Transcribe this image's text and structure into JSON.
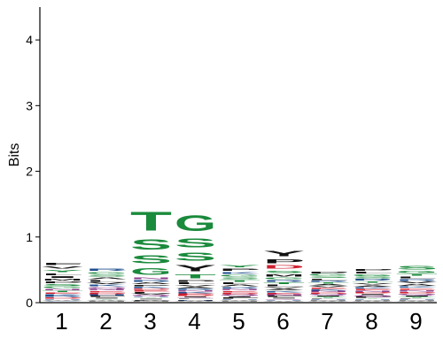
{
  "chart_data": {
    "type": "sequence-logo",
    "title": "",
    "xlabel": "",
    "ylabel": "Bits",
    "ylim": [
      0,
      4.5
    ],
    "yticks": [
      "0",
      "1",
      "2",
      "3",
      "4"
    ],
    "positions": [
      "1",
      "2",
      "3",
      "4",
      "5",
      "6",
      "7",
      "8",
      "9"
    ],
    "colors": {
      "green": "#1a8a3c",
      "black": "#111111",
      "blue": "#1f4e8c",
      "red": "#d02030",
      "purple": "#8a3c8a"
    },
    "columns": [
      {
        "position": "1",
        "total_bits": 0.52,
        "letters": [
          {
            "l": "Q",
            "c": "green",
            "h": 0.012
          },
          {
            "l": "C",
            "c": "blue",
            "h": 0.014
          },
          {
            "l": "W",
            "c": "black",
            "h": 0.016
          },
          {
            "l": "H",
            "c": "blue",
            "h": 0.018
          },
          {
            "l": "D",
            "c": "red",
            "h": 0.02
          },
          {
            "l": "R",
            "c": "blue",
            "h": 0.022
          },
          {
            "l": "K",
            "c": "blue",
            "h": 0.025
          },
          {
            "l": "E",
            "c": "red",
            "h": 0.027
          },
          {
            "l": "T",
            "c": "green",
            "h": 0.03
          },
          {
            "l": "N",
            "c": "purple",
            "h": 0.032
          },
          {
            "l": "G",
            "c": "green",
            "h": 0.035
          },
          {
            "l": "S",
            "c": "green",
            "h": 0.038
          },
          {
            "l": "P",
            "c": "black",
            "h": 0.04
          },
          {
            "l": "M",
            "c": "black",
            "h": 0.04
          },
          {
            "l": "I",
            "c": "black",
            "h": 0.042
          },
          {
            "l": "L",
            "c": "black",
            "h": 0.045
          },
          {
            "l": "Y",
            "c": "green",
            "h": 0.05
          },
          {
            "l": "V",
            "c": "black",
            "h": 0.055
          },
          {
            "l": "F",
            "c": "black",
            "h": 0.06
          }
        ]
      },
      {
        "position": "2",
        "total_bits": 0.48,
        "letters": [
          {
            "l": "C",
            "c": "green",
            "h": 0.012
          },
          {
            "l": "M",
            "c": "black",
            "h": 0.014
          },
          {
            "l": "W",
            "c": "black",
            "h": 0.016
          },
          {
            "l": "Y",
            "c": "green",
            "h": 0.018
          },
          {
            "l": "I",
            "c": "black",
            "h": 0.02
          },
          {
            "l": "F",
            "c": "black",
            "h": 0.022
          },
          {
            "l": "H",
            "c": "blue",
            "h": 0.024
          },
          {
            "l": "D",
            "c": "red",
            "h": 0.026
          },
          {
            "l": "E",
            "c": "red",
            "h": 0.028
          },
          {
            "l": "N",
            "c": "purple",
            "h": 0.03
          },
          {
            "l": "Q",
            "c": "purple",
            "h": 0.032
          },
          {
            "l": "K",
            "c": "blue",
            "h": 0.035
          },
          {
            "l": "V",
            "c": "black",
            "h": 0.035
          },
          {
            "l": "L",
            "c": "black",
            "h": 0.038
          },
          {
            "l": "A",
            "c": "black",
            "h": 0.038
          },
          {
            "l": "S",
            "c": "green",
            "h": 0.04
          },
          {
            "l": "G",
            "c": "green",
            "h": 0.045
          },
          {
            "l": "R",
            "c": "blue",
            "h": 0.055
          }
        ]
      },
      {
        "position": "3",
        "total_bits": 1.4,
        "letters": [
          {
            "l": "C",
            "c": "green",
            "h": 0.01
          },
          {
            "l": "M",
            "c": "black",
            "h": 0.012
          },
          {
            "l": "W",
            "c": "black",
            "h": 0.012
          },
          {
            "l": "F",
            "c": "black",
            "h": 0.014
          },
          {
            "l": "I",
            "c": "black",
            "h": 0.014
          },
          {
            "l": "Y",
            "c": "green",
            "h": 0.016
          },
          {
            "l": "H",
            "c": "blue",
            "h": 0.018
          },
          {
            "l": "Q",
            "c": "purple",
            "h": 0.02
          },
          {
            "l": "V",
            "c": "black",
            "h": 0.022
          },
          {
            "l": "L",
            "c": "black",
            "h": 0.024
          },
          {
            "l": "E",
            "c": "red",
            "h": 0.026
          },
          {
            "l": "D",
            "c": "red",
            "h": 0.028
          },
          {
            "l": "K",
            "c": "blue",
            "h": 0.03
          },
          {
            "l": "P",
            "c": "black",
            "h": 0.032
          },
          {
            "l": "A",
            "c": "black",
            "h": 0.034
          },
          {
            "l": "R",
            "c": "blue",
            "h": 0.036
          },
          {
            "l": "N",
            "c": "purple",
            "h": 0.04
          },
          {
            "l": "G",
            "c": "green",
            "h": 0.17
          },
          {
            "l": "S",
            "c": "green",
            "h": 0.2
          },
          {
            "l": "S",
            "c": "green",
            "h": 0.25
          },
          {
            "l": "T",
            "c": "green",
            "h": 0.46
          }
        ]
      },
      {
        "position": "4",
        "total_bits": 1.36,
        "letters": [
          {
            "l": "C",
            "c": "green",
            "h": 0.01
          },
          {
            "l": "W",
            "c": "black",
            "h": 0.012
          },
          {
            "l": "M",
            "c": "black",
            "h": 0.012
          },
          {
            "l": "H",
            "c": "blue",
            "h": 0.014
          },
          {
            "l": "F",
            "c": "black",
            "h": 0.014
          },
          {
            "l": "Q",
            "c": "purple",
            "h": 0.016
          },
          {
            "l": "I",
            "c": "black",
            "h": 0.018
          },
          {
            "l": "D",
            "c": "red",
            "h": 0.02
          },
          {
            "l": "E",
            "c": "red",
            "h": 0.022
          },
          {
            "l": "K",
            "c": "blue",
            "h": 0.024
          },
          {
            "l": "N",
            "c": "purple",
            "h": 0.026
          },
          {
            "l": "R",
            "c": "blue",
            "h": 0.028
          },
          {
            "l": "A",
            "c": "black",
            "h": 0.03
          },
          {
            "l": "V",
            "c": "black",
            "h": 0.032
          },
          {
            "l": "L",
            "c": "black",
            "h": 0.034
          },
          {
            "l": "P",
            "c": "black",
            "h": 0.036
          },
          {
            "l": "T",
            "c": "green",
            "h": 0.1
          },
          {
            "l": "Y",
            "c": "black",
            "h": 0.15
          },
          {
            "l": "S",
            "c": "green",
            "h": 0.2
          },
          {
            "l": "S",
            "c": "green",
            "h": 0.22
          },
          {
            "l": "G",
            "c": "green",
            "h": 0.38
          }
        ]
      },
      {
        "position": "5",
        "total_bits": 0.52,
        "letters": [
          {
            "l": "C",
            "c": "green",
            "h": 0.012
          },
          {
            "l": "M",
            "c": "black",
            "h": 0.014
          },
          {
            "l": "W",
            "c": "black",
            "h": 0.016
          },
          {
            "l": "H",
            "c": "blue",
            "h": 0.018
          },
          {
            "l": "F",
            "c": "black",
            "h": 0.02
          },
          {
            "l": "I",
            "c": "black",
            "h": 0.022
          },
          {
            "l": "Q",
            "c": "purple",
            "h": 0.024
          },
          {
            "l": "D",
            "c": "red",
            "h": 0.026
          },
          {
            "l": "E",
            "c": "red",
            "h": 0.028
          },
          {
            "l": "N",
            "c": "purple",
            "h": 0.03
          },
          {
            "l": "R",
            "c": "blue",
            "h": 0.032
          },
          {
            "l": "A",
            "c": "black",
            "h": 0.034
          },
          {
            "l": "L",
            "c": "black",
            "h": 0.036
          },
          {
            "l": "T",
            "c": "green",
            "h": 0.038
          },
          {
            "l": "S",
            "c": "green",
            "h": 0.04
          },
          {
            "l": "G",
            "c": "green",
            "h": 0.042
          },
          {
            "l": "K",
            "c": "blue",
            "h": 0.045
          },
          {
            "l": "P",
            "c": "black",
            "h": 0.048
          },
          {
            "l": "Y",
            "c": "green",
            "h": 0.055
          }
        ]
      },
      {
        "position": "6",
        "total_bits": 0.82,
        "letters": [
          {
            "l": "C",
            "c": "green",
            "h": 0.012
          },
          {
            "l": "W",
            "c": "black",
            "h": 0.014
          },
          {
            "l": "H",
            "c": "blue",
            "h": 0.016
          },
          {
            "l": "Q",
            "c": "purple",
            "h": 0.018
          },
          {
            "l": "I",
            "c": "black",
            "h": 0.02
          },
          {
            "l": "F",
            "c": "black",
            "h": 0.022
          },
          {
            "l": "N",
            "c": "purple",
            "h": 0.024
          },
          {
            "l": "E",
            "c": "red",
            "h": 0.026
          },
          {
            "l": "K",
            "c": "blue",
            "h": 0.028
          },
          {
            "l": "A",
            "c": "black",
            "h": 0.03
          },
          {
            "l": "V",
            "c": "black",
            "h": 0.032
          },
          {
            "l": "L",
            "c": "black",
            "h": 0.034
          },
          {
            "l": "T",
            "c": "green",
            "h": 0.036
          },
          {
            "l": "R",
            "c": "blue",
            "h": 0.038
          },
          {
            "l": "G",
            "c": "green",
            "h": 0.04
          },
          {
            "l": "M",
            "c": "black",
            "h": 0.05
          },
          {
            "l": "S",
            "c": "green",
            "h": 0.06
          },
          {
            "l": "D",
            "c": "red",
            "h": 0.08
          },
          {
            "l": "P",
            "c": "black",
            "h": 0.1
          },
          {
            "l": "Y",
            "c": "black",
            "h": 0.13
          }
        ]
      },
      {
        "position": "7",
        "total_bits": 0.38,
        "letters": [
          {
            "l": "C",
            "c": "green",
            "h": 0.01
          },
          {
            "l": "W",
            "c": "black",
            "h": 0.012
          },
          {
            "l": "M",
            "c": "black",
            "h": 0.014
          },
          {
            "l": "H",
            "c": "blue",
            "h": 0.016
          },
          {
            "l": "F",
            "c": "black",
            "h": 0.018
          },
          {
            "l": "Y",
            "c": "green",
            "h": 0.02
          },
          {
            "l": "I",
            "c": "black",
            "h": 0.02
          },
          {
            "l": "Q",
            "c": "purple",
            "h": 0.022
          },
          {
            "l": "D",
            "c": "red",
            "h": 0.022
          },
          {
            "l": "N",
            "c": "purple",
            "h": 0.024
          },
          {
            "l": "K",
            "c": "blue",
            "h": 0.024
          },
          {
            "l": "E",
            "c": "red",
            "h": 0.026
          },
          {
            "l": "V",
            "c": "black",
            "h": 0.026
          },
          {
            "l": "A",
            "c": "black",
            "h": 0.028
          },
          {
            "l": "T",
            "c": "green",
            "h": 0.028
          },
          {
            "l": "R",
            "c": "blue",
            "h": 0.03
          },
          {
            "l": "L",
            "c": "black",
            "h": 0.03
          },
          {
            "l": "S",
            "c": "green",
            "h": 0.032
          },
          {
            "l": "G",
            "c": "green",
            "h": 0.034
          },
          {
            "l": "P",
            "c": "black",
            "h": 0.036
          }
        ]
      },
      {
        "position": "8",
        "total_bits": 0.43,
        "letters": [
          {
            "l": "C",
            "c": "green",
            "h": 0.01
          },
          {
            "l": "W",
            "c": "black",
            "h": 0.012
          },
          {
            "l": "M",
            "c": "black",
            "h": 0.014
          },
          {
            "l": "H",
            "c": "blue",
            "h": 0.016
          },
          {
            "l": "Y",
            "c": "green",
            "h": 0.018
          },
          {
            "l": "F",
            "c": "black",
            "h": 0.02
          },
          {
            "l": "Q",
            "c": "purple",
            "h": 0.022
          },
          {
            "l": "I",
            "c": "black",
            "h": 0.022
          },
          {
            "l": "D",
            "c": "red",
            "h": 0.024
          },
          {
            "l": "N",
            "c": "purple",
            "h": 0.026
          },
          {
            "l": "E",
            "c": "red",
            "h": 0.026
          },
          {
            "l": "K",
            "c": "blue",
            "h": 0.028
          },
          {
            "l": "A",
            "c": "black",
            "h": 0.03
          },
          {
            "l": "V",
            "c": "black",
            "h": 0.03
          },
          {
            "l": "T",
            "c": "green",
            "h": 0.032
          },
          {
            "l": "R",
            "c": "blue",
            "h": 0.034
          },
          {
            "l": "S",
            "c": "green",
            "h": 0.036
          },
          {
            "l": "G",
            "c": "green",
            "h": 0.038
          },
          {
            "l": "L",
            "c": "black",
            "h": 0.04
          },
          {
            "l": "P",
            "c": "black",
            "h": 0.042
          }
        ]
      },
      {
        "position": "9",
        "total_bits": 0.56,
        "letters": [
          {
            "l": "C",
            "c": "green",
            "h": 0.01
          },
          {
            "l": "W",
            "c": "black",
            "h": 0.012
          },
          {
            "l": "M",
            "c": "black",
            "h": 0.014
          },
          {
            "l": "H",
            "c": "blue",
            "h": 0.016
          },
          {
            "l": "F",
            "c": "black",
            "h": 0.018
          },
          {
            "l": "Y",
            "c": "green",
            "h": 0.02
          },
          {
            "l": "I",
            "c": "black",
            "h": 0.022
          },
          {
            "l": "Q",
            "c": "purple",
            "h": 0.024
          },
          {
            "l": "D",
            "c": "red",
            "h": 0.026
          },
          {
            "l": "N",
            "c": "purple",
            "h": 0.028
          },
          {
            "l": "E",
            "c": "red",
            "h": 0.03
          },
          {
            "l": "K",
            "c": "blue",
            "h": 0.032
          },
          {
            "l": "A",
            "c": "black",
            "h": 0.034
          },
          {
            "l": "V",
            "c": "black",
            "h": 0.036
          },
          {
            "l": "R",
            "c": "blue",
            "h": 0.038
          },
          {
            "l": "L",
            "c": "black",
            "h": 0.04
          },
          {
            "l": "T",
            "c": "green",
            "h": 0.042
          },
          {
            "l": "G",
            "c": "green",
            "h": 0.05
          },
          {
            "l": "S",
            "c": "green",
            "h": 0.08
          }
        ]
      }
    ]
  }
}
